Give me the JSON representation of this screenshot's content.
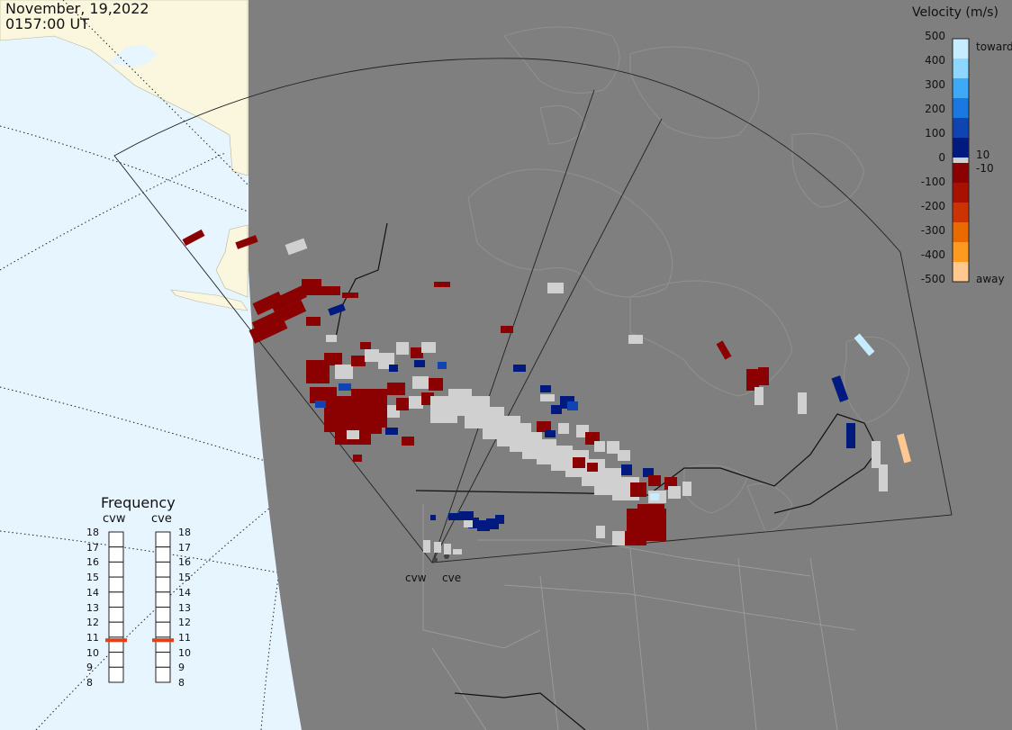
{
  "header": {
    "date": "November, 19,2022",
    "time": "0157:00 UT"
  },
  "velocity_scale": {
    "title": "Velocity (m/s)",
    "ticks": [
      "500",
      "400",
      "300",
      "200",
      "100",
      "0",
      "-100",
      "-200",
      "-300",
      "-400",
      "-500"
    ],
    "toward_label": "toward",
    "away_label": "away",
    "pos_threshold": "10",
    "neg_threshold": "-10",
    "toward_colors": [
      "#c8ecff",
      "#8fd6ff",
      "#3fa9f5",
      "#1a78e0",
      "#1044b0",
      "#001a80"
    ],
    "away_colors": [
      "#8b0000",
      "#a81000",
      "#cc3300",
      "#e86a00",
      "#ff9a20",
      "#ffc890"
    ],
    "ground_scatter_color": "#d0d0d0"
  },
  "frequency_panel": {
    "title": "Frequency",
    "radars": [
      "cvw",
      "cve"
    ],
    "scale": [
      "18",
      "17",
      "16",
      "15",
      "14",
      "13",
      "12",
      "11",
      "10",
      "9",
      "8"
    ],
    "selected_mhz": [
      10.8,
      10.8
    ]
  },
  "map": {
    "radar_sites": [
      "cvw",
      "cve"
    ],
    "colors": {
      "ocean": "#e6f5ff",
      "land_outside": "#fbf7df",
      "coverage": "#7f7f7f"
    }
  }
}
